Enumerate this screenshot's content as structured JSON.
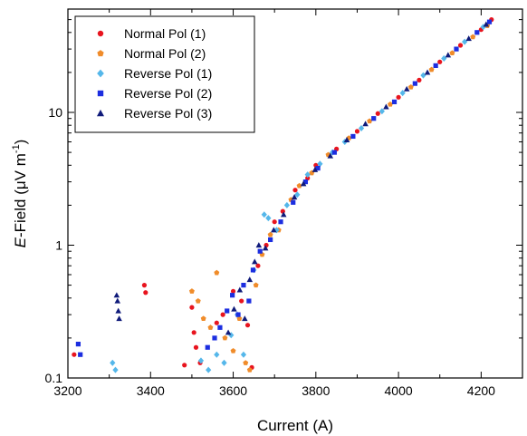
{
  "chart_data": {
    "type": "scatter",
    "title": "",
    "xlabel": "Current (A)",
    "ylabel": {
      "italic": "E",
      "rest": "-Field (μV m",
      "sup": "-1",
      "close": ")"
    },
    "xlim": [
      3200,
      4300
    ],
    "ylim": [
      0.1,
      60
    ],
    "yscale": "log",
    "grid": false,
    "legend_position": "top-left",
    "x_ticks": [
      3200,
      3400,
      3600,
      3800,
      4000,
      4200
    ],
    "x_tick_labels": [
      "3200",
      "3400",
      "3600",
      "3800",
      "4000",
      "4200"
    ],
    "y_ticks": [
      0.1,
      1,
      10
    ],
    "y_tick_labels": [
      "0.1",
      "1",
      "10"
    ],
    "series": [
      {
        "name": "Normal Pol (1)",
        "color": "#e8141e",
        "marker": "circle",
        "points": [
          [
            3215,
            0.15
          ],
          [
            3385,
            0.5
          ],
          [
            3388,
            0.44
          ],
          [
            3482,
            0.125
          ],
          [
            3500,
            0.34
          ],
          [
            3505,
            0.22
          ],
          [
            3510,
            0.17
          ],
          [
            3520,
            0.13
          ],
          [
            3560,
            0.26
          ],
          [
            3575,
            0.3
          ],
          [
            3600,
            0.45
          ],
          [
            3620,
            0.38
          ],
          [
            3635,
            0.25
          ],
          [
            3645,
            0.12
          ],
          [
            3660,
            0.7
          ],
          [
            3680,
            1.0
          ],
          [
            3700,
            1.5
          ],
          [
            3720,
            1.8
          ],
          [
            3750,
            2.6
          ],
          [
            3780,
            3.2
          ],
          [
            3800,
            4.0
          ],
          [
            3850,
            5.3
          ],
          [
            3900,
            7.2
          ],
          [
            3950,
            9.8
          ],
          [
            4000,
            13.0
          ],
          [
            4050,
            17.5
          ],
          [
            4100,
            24.0
          ],
          [
            4150,
            32.0
          ],
          [
            4200,
            42.0
          ],
          [
            4225,
            50.0
          ]
        ]
      },
      {
        "name": "Normal Pol (2)",
        "color": "#f08c2a",
        "marker": "pentagon",
        "points": [
          [
            3500,
            0.45
          ],
          [
            3515,
            0.38
          ],
          [
            3528,
            0.28
          ],
          [
            3545,
            0.24
          ],
          [
            3560,
            0.62
          ],
          [
            3580,
            0.2
          ],
          [
            3600,
            0.16
          ],
          [
            3615,
            0.28
          ],
          [
            3630,
            0.13
          ],
          [
            3640,
            0.115
          ],
          [
            3655,
            0.5
          ],
          [
            3670,
            0.85
          ],
          [
            3690,
            1.2
          ],
          [
            3710,
            1.3
          ],
          [
            3740,
            2.2
          ],
          [
            3760,
            2.8
          ],
          [
            3790,
            3.5
          ],
          [
            3830,
            4.8
          ],
          [
            3880,
            6.4
          ],
          [
            3930,
            8.6
          ],
          [
            3980,
            11.5
          ],
          [
            4030,
            15.5
          ],
          [
            4080,
            21.0
          ],
          [
            4130,
            28.0
          ],
          [
            4180,
            37.0
          ],
          [
            4215,
            45.0
          ]
        ]
      },
      {
        "name": "Reverse Pol (1)",
        "color": "#55b7ea",
        "marker": "diamond",
        "points": [
          [
            3308,
            0.13
          ],
          [
            3315,
            0.115
          ],
          [
            3522,
            0.135
          ],
          [
            3540,
            0.115
          ],
          [
            3560,
            0.15
          ],
          [
            3578,
            0.13
          ],
          [
            3595,
            0.21
          ],
          [
            3610,
            0.3
          ],
          [
            3625,
            0.15
          ],
          [
            3650,
            0.65
          ],
          [
            3675,
            1.7
          ],
          [
            3685,
            1.6
          ],
          [
            3705,
            1.3
          ],
          [
            3730,
            2.0
          ],
          [
            3755,
            2.4
          ],
          [
            3780,
            3.4
          ],
          [
            3810,
            4.1
          ],
          [
            3840,
            5.0
          ],
          [
            3870,
            6.0
          ],
          [
            3910,
            7.6
          ],
          [
            3960,
            10.2
          ],
          [
            4010,
            14.0
          ],
          [
            4060,
            19.0
          ],
          [
            4110,
            25.5
          ],
          [
            4160,
            34.0
          ],
          [
            4205,
            44.0
          ]
        ]
      },
      {
        "name": "Reverse Pol (2)",
        "color": "#1c2ee0",
        "marker": "square",
        "points": [
          [
            3225,
            0.18
          ],
          [
            3230,
            0.15
          ],
          [
            3538,
            0.17
          ],
          [
            3555,
            0.2
          ],
          [
            3568,
            0.24
          ],
          [
            3585,
            0.32
          ],
          [
            3598,
            0.42
          ],
          [
            3612,
            0.3
          ],
          [
            3625,
            0.5
          ],
          [
            3638,
            0.38
          ],
          [
            3648,
            0.65
          ],
          [
            3665,
            0.9
          ],
          [
            3690,
            1.1
          ],
          [
            3715,
            1.5
          ],
          [
            3745,
            2.1
          ],
          [
            3775,
            3.0
          ],
          [
            3805,
            3.8
          ],
          [
            3845,
            5.0
          ],
          [
            3890,
            6.6
          ],
          [
            3940,
            9.0
          ],
          [
            3990,
            12.0
          ],
          [
            4040,
            16.5
          ],
          [
            4090,
            22.5
          ],
          [
            4140,
            30.0
          ],
          [
            4190,
            40.0
          ],
          [
            4220,
            48.0
          ]
        ]
      },
      {
        "name": "Reverse Pol (3)",
        "color": "#0f1a7a",
        "marker": "triangle",
        "points": [
          [
            3318,
            0.42
          ],
          [
            3320,
            0.38
          ],
          [
            3322,
            0.32
          ],
          [
            3324,
            0.28
          ],
          [
            3588,
            0.22
          ],
          [
            3602,
            0.33
          ],
          [
            3616,
            0.46
          ],
          [
            3628,
            0.28
          ],
          [
            3640,
            0.55
          ],
          [
            3652,
            0.75
          ],
          [
            3662,
            1.0
          ],
          [
            3678,
            0.95
          ],
          [
            3698,
            1.3
          ],
          [
            3722,
            1.7
          ],
          [
            3748,
            2.3
          ],
          [
            3770,
            2.9
          ],
          [
            3798,
            3.7
          ],
          [
            3835,
            4.7
          ],
          [
            3875,
            6.2
          ],
          [
            3920,
            8.2
          ],
          [
            3970,
            11.0
          ],
          [
            4020,
            15.0
          ],
          [
            4070,
            20.0
          ],
          [
            4120,
            27.0
          ],
          [
            4170,
            36.0
          ],
          [
            4212,
            46.0
          ]
        ]
      }
    ]
  }
}
